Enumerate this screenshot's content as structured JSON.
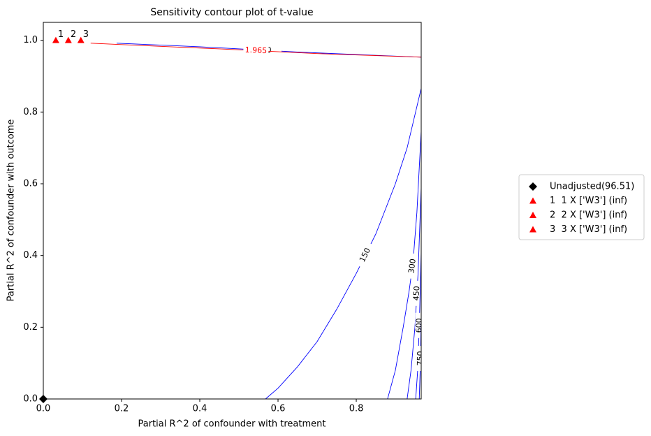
{
  "chart_data": {
    "type": "contour",
    "title": "Sensitivity contour plot of t-value",
    "x_label": "Partial R^2 of confounder with treatment",
    "y_label": "Partial R^2 of confounder with outcome",
    "xlim": [
      0,
      0.966
    ],
    "ylim": [
      0,
      1.05
    ],
    "xticks": [
      {
        "value": 0,
        "label": "0.0"
      },
      {
        "value": 0.2,
        "label": "0.2"
      },
      {
        "value": 0.4,
        "label": "0.4"
      },
      {
        "value": 0.6,
        "label": "0.6"
      },
      {
        "value": 0.8,
        "label": "0.8"
      }
    ],
    "yticks": [
      {
        "value": 0,
        "label": "0.0"
      },
      {
        "value": 0.2,
        "label": "0.2"
      },
      {
        "value": 0.4,
        "label": "0.4"
      },
      {
        "value": 0.6,
        "label": "0.6"
      },
      {
        "value": 0.8,
        "label": "0.8"
      },
      {
        "value": 1.0,
        "label": "1.0"
      }
    ],
    "contours": [
      {
        "level": 0,
        "color": "blue",
        "label_color": "black",
        "x": [
          0.1875,
          0.4,
          0.654,
          0.85,
          0.966
        ],
        "y": [
          0.992,
          0.982,
          0.967,
          0.958,
          0.953
        ]
      },
      {
        "level": 1.965,
        "color": "red",
        "label_color": "red",
        "x": [
          0.121,
          0.24,
          0.45,
          0.7,
          0.966
        ],
        "y": [
          0.992,
          0.986,
          0.976,
          0.963,
          0.953
        ]
      },
      {
        "level": 150,
        "color": "blue",
        "label_color": "black",
        "x": [
          0.568,
          0.6,
          0.65,
          0.7,
          0.75,
          0.8,
          0.85,
          0.9,
          0.93,
          0.966
        ],
        "y": [
          0,
          0.03,
          0.09,
          0.16,
          0.25,
          0.35,
          0.46,
          0.6,
          0.7,
          0.866
        ]
      },
      {
        "level": 300,
        "color": "blue",
        "label_color": "black",
        "x": [
          0.88,
          0.9,
          0.92,
          0.935,
          0.945,
          0.955,
          0.966
        ],
        "y": [
          0,
          0.08,
          0.2,
          0.3,
          0.38,
          0.52,
          0.747
        ]
      },
      {
        "level": 450,
        "color": "blue",
        "label_color": "black",
        "x": [
          0.93,
          0.94,
          0.95,
          0.958,
          0.966
        ],
        "y": [
          0,
          0.08,
          0.2,
          0.35,
          0.59
        ]
      },
      {
        "level": 600,
        "color": "blue",
        "label_color": "black",
        "x": [
          0.952,
          0.957,
          0.961,
          0.966
        ],
        "y": [
          0,
          0.08,
          0.2,
          0.41
        ]
      },
      {
        "level": 750,
        "color": "blue",
        "label_color": "black",
        "x": [
          0.961,
          0.964,
          0.966
        ],
        "y": [
          0,
          0.1,
          0.226
        ]
      }
    ],
    "series": [
      {
        "name": "Unadjusted(96.51)",
        "color": "black",
        "marker": "diamond",
        "x": [
          0
        ],
        "y": [
          0
        ]
      },
      {
        "name": "1  1 X ['W3'] (inf)",
        "color": "red",
        "marker": "triangle",
        "x": [
          0.032
        ],
        "y": [
          1.0
        ],
        "labels": [
          "1"
        ]
      },
      {
        "name": "2  2 X ['W3'] (inf)",
        "color": "red",
        "marker": "triangle",
        "x": [
          0.064
        ],
        "y": [
          1.0
        ],
        "labels": [
          "2"
        ]
      },
      {
        "name": "3  3 X ['W3'] (inf)",
        "color": "red",
        "marker": "triangle",
        "x": [
          0.096
        ],
        "y": [
          1.0
        ],
        "labels": [
          "3"
        ]
      }
    ]
  }
}
